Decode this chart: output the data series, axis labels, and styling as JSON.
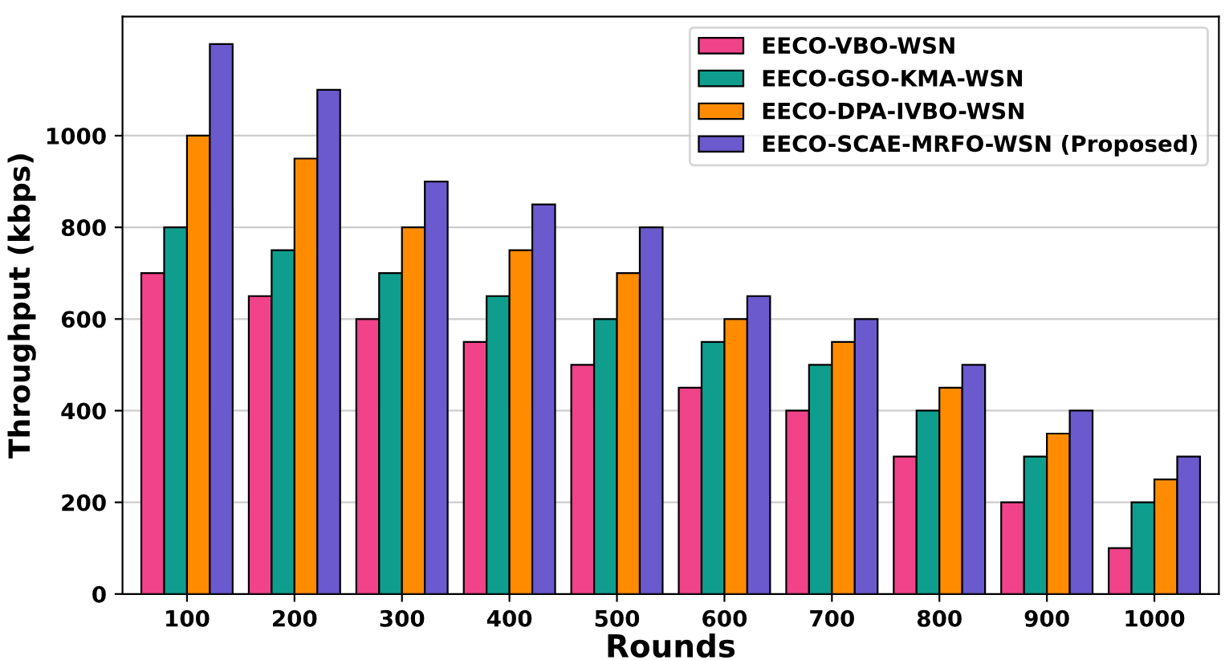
{
  "chart_data": {
    "type": "bar",
    "xlabel": "Rounds",
    "ylabel": "Throughput (kbps)",
    "categories": [
      "100",
      "200",
      "300",
      "400",
      "500",
      "600",
      "700",
      "800",
      "900",
      "1000"
    ],
    "series": [
      {
        "name": "EECO-VBO-WSN",
        "color": "#f0438a",
        "values": [
          700,
          650,
          600,
          550,
          500,
          450,
          400,
          300,
          200,
          100
        ]
      },
      {
        "name": "EECO-GSO-KMA-WSN",
        "color": "#0f9e8e",
        "values": [
          800,
          750,
          700,
          650,
          600,
          550,
          500,
          400,
          300,
          200
        ]
      },
      {
        "name": "EECO-DPA-IVBO-WSN",
        "color": "#ff8c00",
        "values": [
          1000,
          950,
          800,
          750,
          700,
          600,
          550,
          450,
          350,
          250
        ]
      },
      {
        "name": "EECO-SCAE-MRFO-WSN (Proposed)",
        "color": "#6a5acd",
        "values": [
          1200,
          1100,
          900,
          850,
          800,
          650,
          600,
          500,
          400,
          300
        ]
      }
    ],
    "ylim": [
      0,
      1260
    ],
    "yticks": [
      0,
      200,
      400,
      600,
      800,
      1000
    ],
    "grid": "y",
    "legend": "top right"
  }
}
